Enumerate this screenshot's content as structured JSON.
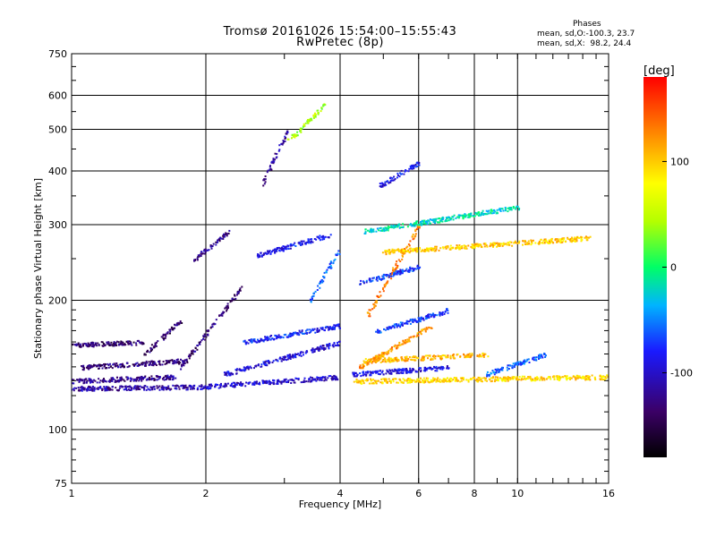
{
  "chart_data": {
    "type": "scatter",
    "title": "Tromsø 20161026 15:54:00–15:55:43",
    "subtitle": "RwPretec (8p)",
    "xlabel": "Frequency [MHz]",
    "ylabel": "Stationary phase Virtual Height [km]",
    "xscale": "log",
    "yscale": "log",
    "xlim": [
      1,
      16
    ],
    "ylim": [
      75,
      750
    ],
    "xticks": [
      1,
      2,
      4,
      6,
      8,
      10,
      16
    ],
    "xtick_labels": [
      "1",
      "2",
      "4",
      "6",
      "8",
      "10",
      "16"
    ],
    "yticks": [
      75,
      100,
      200,
      300,
      400,
      500,
      600,
      750
    ],
    "ytick_labels": [
      "75",
      "100",
      "200",
      "300",
      "400",
      "500",
      "600",
      "750"
    ],
    "grid": true,
    "colorbar": {
      "label": "[deg]",
      "min": -180,
      "max": 180,
      "ticks": [
        100,
        0,
        -100
      ],
      "tick_labels": [
        "100",
        "0",
        "-100"
      ]
    },
    "stats": {
      "head": "Phases",
      "o_line": "mean, sd,O:-100.3, 23.7",
      "x_line": "mean, sd,X:  98.2, 24.4"
    },
    "traces": [
      {
        "f": [
          1.0,
          1.45
        ],
        "h": [
          158,
          160
        ],
        "phase": -135
      },
      {
        "f": [
          1.45,
          1.75
        ],
        "h": [
          150,
          180
        ],
        "phase": -135
      },
      {
        "f": [
          1.0,
          1.7
        ],
        "h": [
          130,
          133
        ],
        "phase": -120
      },
      {
        "f": [
          1.0,
          1.9
        ],
        "h": [
          125,
          126
        ],
        "phase": -115
      },
      {
        "f": [
          1.9,
          4.0
        ],
        "h": [
          126,
          133
        ],
        "phase": -100
      },
      {
        "f": [
          1.05,
          1.8
        ],
        "h": [
          140,
          145
        ],
        "phase": -130
      },
      {
        "f": [
          1.75,
          2.4
        ],
        "h": [
          140,
          215
        ],
        "phase": -130
      },
      {
        "f": [
          1.88,
          2.25
        ],
        "h": [
          250,
          290
        ],
        "phase": -125
      },
      {
        "f": [
          2.2,
          4.0
        ],
        "h": [
          135,
          160
        ],
        "phase": -95
      },
      {
        "f": [
          2.4,
          4.0
        ],
        "h": [
          160,
          175
        ],
        "phase": -80
      },
      {
        "f": [
          2.6,
          3.8
        ],
        "h": [
          255,
          285
        ],
        "phase": -85
      },
      {
        "f": [
          2.65,
          3.05
        ],
        "h": [
          370,
          500
        ],
        "phase": -115
      },
      {
        "f": [
          3.05,
          3.7
        ],
        "h": [
          470,
          575
        ],
        "phase": 40
      },
      {
        "f": [
          3.4,
          3.95
        ],
        "h": [
          200,
          260
        ],
        "phase": -60
      },
      {
        "f": [
          4.3,
          16.0
        ],
        "h": [
          130,
          133
        ],
        "phase": 95
      },
      {
        "f": [
          4.25,
          7.0
        ],
        "h": [
          135,
          140
        ],
        "phase": -90
      },
      {
        "f": [
          4.4,
          6.4
        ],
        "h": [
          140,
          175
        ],
        "phase": 120
      },
      {
        "f": [
          4.5,
          8.5
        ],
        "h": [
          145,
          150
        ],
        "phase": 110
      },
      {
        "f": [
          4.8,
          7.0
        ],
        "h": [
          170,
          190
        ],
        "phase": -70
      },
      {
        "f": [
          4.6,
          6.0
        ],
        "h": [
          185,
          300
        ],
        "phase": 130
      },
      {
        "f": [
          4.4,
          6.0
        ],
        "h": [
          220,
          240
        ],
        "phase": -75
      },
      {
        "f": [
          4.9,
          6.0
        ],
        "h": [
          370,
          420
        ],
        "phase": -90
      },
      {
        "f": [
          5.0,
          14.5
        ],
        "h": [
          260,
          280
        ],
        "phase": 100
      },
      {
        "f": [
          4.5,
          10.0
        ],
        "h": [
          290,
          330
        ],
        "phase": -20
      },
      {
        "f": [
          8.5,
          11.5
        ],
        "h": [
          135,
          150
        ],
        "phase": -60
      }
    ]
  }
}
